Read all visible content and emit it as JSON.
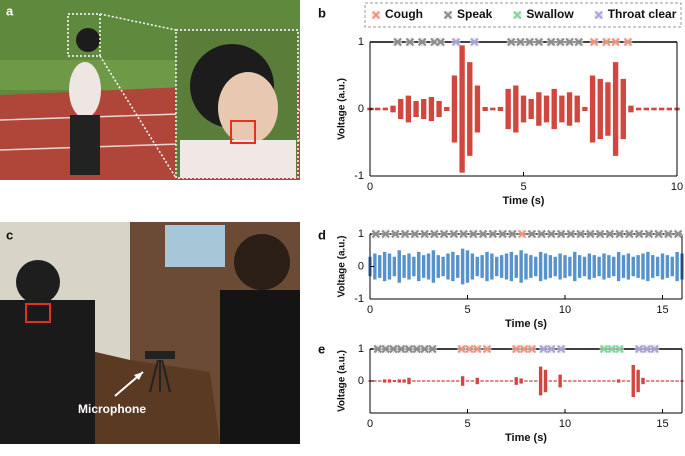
{
  "figure": {
    "panel_labels": [
      "a",
      "b",
      "c",
      "d",
      "e"
    ],
    "photo_annotation": "Microphone"
  },
  "chart_data": [
    {
      "type": "waveform",
      "xlabel": "Time (s)",
      "ylabel": "Voltage (a.u.)",
      "xlim": [
        0,
        10
      ],
      "ylim": [
        -1,
        1
      ],
      "xticks": [
        0,
        5,
        10
      ],
      "yticks": [
        -1,
        0,
        1
      ],
      "waveform": {
        "color": "#c8281e",
        "x": [
          0,
          0.25,
          0.5,
          0.75,
          1,
          1.25,
          1.5,
          1.75,
          2,
          2.25,
          2.5,
          2.75,
          3,
          3.25,
          3.5,
          3.75,
          4,
          4.25,
          4.5,
          4.75,
          5,
          5.25,
          5.5,
          5.75,
          6,
          6.25,
          6.5,
          6.75,
          7,
          7.25,
          7.5,
          7.75,
          8,
          8.25,
          8.5,
          8.75,
          9,
          9.25,
          9.5,
          9.75,
          10
        ],
        "amplitude": [
          0.02,
          0.02,
          0.02,
          0.05,
          0.15,
          0.2,
          0.12,
          0.15,
          0.18,
          0.12,
          0.03,
          0.5,
          0.95,
          0.7,
          0.35,
          0.03,
          0.02,
          0.03,
          0.3,
          0.35,
          0.2,
          0.15,
          0.25,
          0.2,
          0.3,
          0.2,
          0.25,
          0.2,
          0.03,
          0.5,
          0.45,
          0.4,
          0.7,
          0.45,
          0.05,
          0.02,
          0.02,
          0.02,
          0.02,
          0.02,
          0.02
        ]
      },
      "series": [
        {
          "name": "Cough",
          "color": "#f0957b",
          "x": [
            7.3,
            7.7,
            8.0,
            8.4
          ]
        },
        {
          "name": "Speak",
          "color": "#8c8c8c",
          "x": [
            0.9,
            1.3,
            1.7,
            2.1,
            2.3,
            4.6,
            4.9,
            5.2,
            5.5,
            5.9,
            6.2,
            6.5,
            6.8
          ]
        },
        {
          "name": "Swallow",
          "color": "#7fd89a",
          "x": []
        },
        {
          "name": "Throat clear",
          "color": "#a9a3e0",
          "x": [
            2.8,
            3.4
          ]
        }
      ]
    },
    {
      "type": "waveform",
      "xlabel": "Time (s)",
      "ylabel": "Voltage (a.u.)",
      "xlim": [
        0,
        16
      ],
      "ylim": [
        -1,
        1
      ],
      "xticks": [
        0,
        5,
        10,
        15
      ],
      "yticks": [
        -1,
        0,
        1
      ],
      "waveform": {
        "color": "#3a7fc1",
        "x": [
          0,
          0.25,
          0.5,
          0.75,
          1,
          1.25,
          1.5,
          1.75,
          2,
          2.25,
          2.5,
          2.75,
          3,
          3.25,
          3.5,
          3.75,
          4,
          4.25,
          4.5,
          4.75,
          5,
          5.25,
          5.5,
          5.75,
          6,
          6.25,
          6.5,
          6.75,
          7,
          7.25,
          7.5,
          7.75,
          8,
          8.25,
          8.5,
          8.75,
          9,
          9.25,
          9.5,
          9.75,
          10,
          10.25,
          10.5,
          10.75,
          11,
          11.25,
          11.5,
          11.75,
          12,
          12.25,
          12.5,
          12.75,
          13,
          13.25,
          13.5,
          13.75,
          14,
          14.25,
          14.5,
          14.75,
          15,
          15.25,
          15.5,
          15.75,
          16
        ],
        "amplitude": [
          0.3,
          0.4,
          0.35,
          0.45,
          0.4,
          0.3,
          0.5,
          0.35,
          0.4,
          0.3,
          0.45,
          0.35,
          0.4,
          0.5,
          0.35,
          0.3,
          0.4,
          0.45,
          0.35,
          0.55,
          0.5,
          0.4,
          0.3,
          0.35,
          0.45,
          0.4,
          0.3,
          0.35,
          0.4,
          0.45,
          0.35,
          0.5,
          0.4,
          0.35,
          0.3,
          0.45,
          0.4,
          0.35,
          0.3,
          0.4,
          0.35,
          0.3,
          0.45,
          0.35,
          0.3,
          0.4,
          0.35,
          0.3,
          0.4,
          0.35,
          0.3,
          0.45,
          0.35,
          0.4,
          0.3,
          0.35,
          0.4,
          0.45,
          0.35,
          0.3,
          0.4,
          0.35,
          0.3,
          0.45,
          0.4
        ]
      },
      "series": [
        {
          "name": "Cough",
          "color": "#f0957b",
          "x": [
            7.8
          ]
        },
        {
          "name": "Speak",
          "color": "#8c8c8c",
          "x": [
            0.3,
            0.8,
            1.3,
            1.8,
            2.3,
            2.8,
            3.3,
            3.8,
            4.3,
            4.8,
            5.3,
            5.8,
            6.3,
            6.8,
            7.3,
            8.3,
            8.8,
            9.3,
            9.8,
            10.3,
            10.8,
            11.3,
            11.8,
            12.3,
            12.8,
            13.3,
            13.8,
            14.3,
            14.8,
            15.3,
            15.8
          ]
        }
      ]
    },
    {
      "type": "waveform",
      "xlabel": "Time (s)",
      "ylabel": "Voltage (a.u.)",
      "xlim": [
        0,
        16
      ],
      "ylim": [
        -1,
        1
      ],
      "xticks": [
        0,
        5,
        10,
        15
      ],
      "yticks": [
        0,
        1
      ],
      "waveform": {
        "color": "#c8281e",
        "x": [
          0,
          0.25,
          0.5,
          0.75,
          1,
          1.25,
          1.5,
          1.75,
          2,
          2.25,
          2.5,
          2.75,
          3,
          3.25,
          3.5,
          3.75,
          4,
          4.25,
          4.5,
          4.75,
          5,
          5.25,
          5.5,
          5.75,
          6,
          6.25,
          6.5,
          6.75,
          7,
          7.25,
          7.5,
          7.75,
          8,
          8.25,
          8.5,
          8.75,
          9,
          9.25,
          9.5,
          9.75,
          10,
          10.25,
          10.5,
          10.75,
          11,
          11.25,
          11.5,
          11.75,
          12,
          12.25,
          12.5,
          12.75,
          13,
          13.25,
          13.5,
          13.75,
          14,
          14.25,
          14.5,
          14.75,
          15,
          15.25,
          15.5,
          15.75,
          16
        ],
        "amplitude": [
          0.02,
          0.02,
          0.02,
          0.05,
          0.05,
          0.03,
          0.05,
          0.05,
          0.1,
          0.02,
          0.02,
          0.02,
          0.02,
          0.02,
          0.02,
          0.02,
          0.02,
          0.02,
          0.02,
          0.15,
          0.02,
          0.02,
          0.1,
          0.02,
          0.02,
          0.02,
          0.02,
          0.02,
          0.02,
          0.02,
          0.12,
          0.08,
          0.02,
          0.02,
          0.02,
          0.45,
          0.35,
          0.02,
          0.02,
          0.2,
          0.02,
          0.02,
          0.02,
          0.02,
          0.02,
          0.02,
          0.02,
          0.02,
          0.02,
          0.02,
          0.02,
          0.05,
          0.02,
          0.02,
          0.5,
          0.35,
          0.1,
          0.02,
          0.02,
          0.02,
          0.02,
          0.02,
          0.02,
          0.02,
          0.02
        ]
      },
      "series": [
        {
          "name": "Cough",
          "color": "#f0957b",
          "x": [
            4.7,
            5.1,
            5.5,
            6.0,
            7.5,
            7.9,
            8.3
          ]
        },
        {
          "name": "Speak",
          "color": "#8c8c8c",
          "x": [
            0.4,
            0.8,
            1.2,
            1.6,
            2.0,
            2.4,
            2.8,
            3.2
          ]
        },
        {
          "name": "Swallow",
          "color": "#7fd89a",
          "x": [
            12.0,
            12.4,
            12.8
          ]
        },
        {
          "name": "Throat clear",
          "color": "#a9a3e0",
          "x": [
            8.9,
            9.3,
            9.8,
            13.8,
            14.2,
            14.6
          ]
        }
      ]
    }
  ]
}
